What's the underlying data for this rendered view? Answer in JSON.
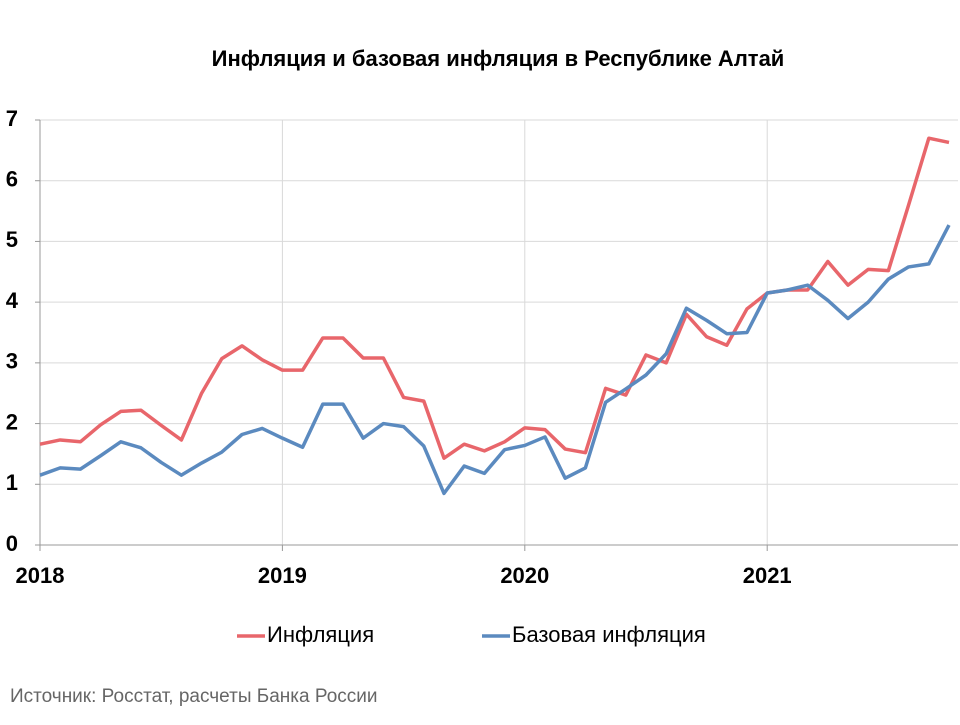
{
  "chart_data": {
    "type": "line",
    "title": "Инфляция и базовая инфляция в Республике Алтай",
    "source": "Источник: Росстат, расчеты Банка России",
    "categories": [
      "2018",
      null,
      null,
      null,
      null,
      null,
      null,
      null,
      null,
      null,
      null,
      null,
      "2019",
      null,
      null,
      null,
      null,
      null,
      null,
      null,
      null,
      null,
      null,
      null,
      "2020",
      null,
      null,
      null,
      null,
      null,
      null,
      null,
      null,
      null,
      null,
      null,
      "2021",
      null,
      null,
      null,
      null,
      null,
      null,
      null,
      null,
      null
    ],
    "series": [
      {
        "name": "Инфляция",
        "color": "#e8666b",
        "values": [
          1.66,
          1.73,
          1.7,
          1.98,
          2.2,
          2.22,
          1.97,
          1.73,
          2.5,
          3.07,
          3.28,
          3.05,
          2.88,
          2.88,
          3.41,
          3.41,
          3.08,
          3.08,
          2.43,
          2.37,
          1.43,
          1.66,
          1.55,
          1.7,
          1.93,
          1.9,
          1.58,
          1.52,
          2.58,
          2.47,
          3.13,
          3.0,
          3.8,
          3.43,
          3.29,
          3.89,
          4.15,
          4.2,
          4.2,
          4.67,
          4.28,
          4.54,
          4.52,
          5.6,
          6.7,
          6.63
        ]
      },
      {
        "name": "Базовая инфляция",
        "color": "#5b8abf",
        "values": [
          1.15,
          1.27,
          1.25,
          1.47,
          1.7,
          1.6,
          1.36,
          1.15,
          1.35,
          1.53,
          1.82,
          1.92,
          1.76,
          1.61,
          2.32,
          2.32,
          1.76,
          2.0,
          1.95,
          1.63,
          0.85,
          1.3,
          1.18,
          1.57,
          1.64,
          1.78,
          1.1,
          1.27,
          2.35,
          2.57,
          2.8,
          3.15,
          3.9,
          3.7,
          3.48,
          3.5,
          4.15,
          4.2,
          4.28,
          4.03,
          3.73,
          4.0,
          4.38,
          4.58,
          4.63,
          5.27
        ]
      }
    ],
    "ylim": [
      0,
      7
    ],
    "yticks": [
      0,
      1,
      2,
      3,
      4,
      5,
      6,
      7
    ],
    "grid": true
  }
}
